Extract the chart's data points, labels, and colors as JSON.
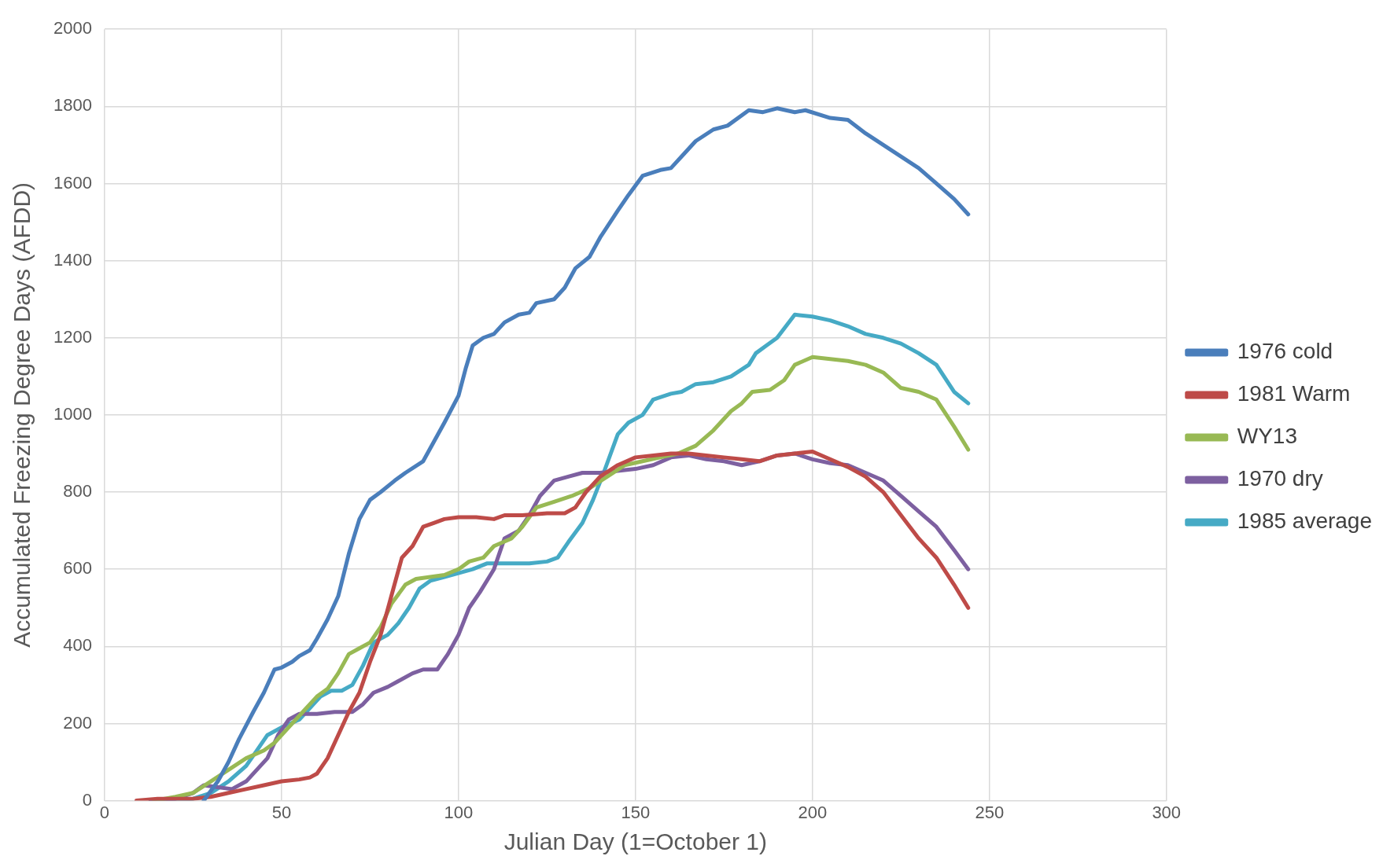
{
  "chart_data": {
    "type": "line",
    "xlabel": "Julian Day (1=October 1)",
    "ylabel": "Accumulated Freezing Degree Days (AFDD)",
    "xlim": [
      0,
      300
    ],
    "xticks": [
      0,
      50,
      100,
      150,
      200,
      250,
      300
    ],
    "ylim": [
      0,
      2000
    ],
    "yticks": [
      0,
      200,
      400,
      600,
      800,
      1000,
      1200,
      1400,
      1600,
      1800,
      2000
    ],
    "grid": true,
    "legend": "right",
    "marker": "none",
    "line_style": "solid",
    "series": [
      {
        "name": "1976 cold",
        "color": "#4a7ebb",
        "x": [
          28,
          32,
          35,
          38,
          42,
          45,
          48,
          50,
          53,
          55,
          58,
          60,
          63,
          66,
          69,
          72,
          75,
          78,
          82,
          85,
          90,
          93,
          96,
          100,
          102,
          104,
          107,
          110,
          113,
          117,
          120,
          122,
          127,
          130,
          133,
          137,
          140,
          145,
          148,
          152,
          157,
          160,
          164,
          167,
          172,
          176,
          182,
          186,
          190,
          195,
          198,
          205,
          210,
          215,
          220,
          225,
          230,
          235,
          240,
          244
        ],
        "values": [
          0,
          50,
          100,
          160,
          230,
          280,
          340,
          345,
          360,
          375,
          390,
          420,
          470,
          530,
          640,
          730,
          780,
          800,
          830,
          850,
          880,
          930,
          980,
          1050,
          1120,
          1180,
          1200,
          1210,
          1240,
          1260,
          1265,
          1290,
          1300,
          1330,
          1380,
          1410,
          1460,
          1530,
          1570,
          1620,
          1635,
          1640,
          1680,
          1710,
          1740,
          1750,
          1790,
          1785,
          1795,
          1785,
          1790,
          1770,
          1765,
          1730,
          1700,
          1670,
          1640,
          1600,
          1560,
          1520
        ]
      },
      {
        "name": "1981 Warm",
        "color": "#be4b48",
        "x": [
          9,
          15,
          25,
          30,
          35,
          40,
          45,
          50,
          55,
          58,
          60,
          63,
          66,
          69,
          72,
          75,
          78,
          81,
          84,
          87,
          90,
          93,
          96,
          100,
          105,
          110,
          113,
          118,
          125,
          130,
          133,
          136,
          140,
          145,
          150,
          155,
          160,
          165,
          170,
          175,
          180,
          185,
          190,
          195,
          200,
          205,
          210,
          215,
          220,
          225,
          230,
          235,
          240,
          244
        ],
        "values": [
          0,
          5,
          5,
          10,
          20,
          30,
          40,
          50,
          55,
          60,
          70,
          110,
          170,
          230,
          280,
          360,
          430,
          530,
          630,
          660,
          710,
          720,
          730,
          735,
          735,
          730,
          740,
          740,
          745,
          745,
          760,
          800,
          840,
          870,
          890,
          895,
          900,
          900,
          895,
          890,
          885,
          880,
          895,
          900,
          905,
          885,
          865,
          840,
          800,
          740,
          680,
          630,
          560,
          500
        ]
      },
      {
        "name": "WY13",
        "color": "#98b954",
        "x": [
          14,
          20,
          25,
          30,
          35,
          40,
          45,
          48,
          52,
          56,
          60,
          63,
          66,
          69,
          72,
          75,
          78,
          81,
          85,
          88,
          92,
          96,
          100,
          103,
          107,
          110,
          115,
          118,
          122,
          127,
          132,
          137,
          142,
          147,
          152,
          157,
          162,
          167,
          172,
          177,
          180,
          183,
          188,
          192,
          195,
          200,
          205,
          210,
          215,
          220,
          225,
          230,
          235,
          240,
          244
        ],
        "values": [
          0,
          10,
          20,
          50,
          80,
          110,
          130,
          150,
          190,
          230,
          270,
          290,
          330,
          380,
          395,
          410,
          450,
          510,
          560,
          575,
          580,
          585,
          600,
          620,
          630,
          660,
          680,
          710,
          760,
          775,
          790,
          810,
          840,
          870,
          880,
          890,
          900,
          920,
          960,
          1010,
          1030,
          1060,
          1065,
          1090,
          1130,
          1150,
          1145,
          1140,
          1130,
          1110,
          1070,
          1060,
          1040,
          970,
          910
        ]
      },
      {
        "name": "1970 dry",
        "color": "#7d60a0",
        "x": [
          13,
          20,
          25,
          28,
          32,
          36,
          40,
          43,
          46,
          49,
          52,
          55,
          60,
          65,
          70,
          73,
          76,
          80,
          83,
          87,
          90,
          94,
          97,
          100,
          103,
          106,
          110,
          113,
          117,
          120,
          123,
          127,
          131,
          135,
          140,
          145,
          150,
          155,
          160,
          165,
          170,
          175,
          180,
          185,
          190,
          195,
          200,
          205,
          210,
          215,
          220,
          225,
          230,
          235,
          240,
          244
        ],
        "values": [
          0,
          5,
          20,
          40,
          35,
          30,
          50,
          80,
          110,
          170,
          210,
          225,
          225,
          230,
          230,
          250,
          280,
          295,
          310,
          330,
          340,
          340,
          380,
          430,
          500,
          540,
          600,
          680,
          700,
          740,
          790,
          830,
          840,
          850,
          850,
          855,
          860,
          870,
          890,
          895,
          885,
          880,
          870,
          880,
          895,
          900,
          885,
          875,
          870,
          850,
          830,
          790,
          750,
          710,
          650,
          600
        ]
      },
      {
        "name": "1985 average",
        "color": "#46aac5",
        "x": [
          13,
          20,
          25,
          30,
          35,
          40,
          43,
          46,
          50,
          55,
          58,
          61,
          64,
          67,
          70,
          73,
          76,
          80,
          83,
          86,
          89,
          92,
          96,
          100,
          104,
          108,
          115,
          120,
          125,
          128,
          131,
          135,
          138,
          141,
          145,
          148,
          152,
          155,
          160,
          163,
          167,
          172,
          177,
          182,
          184,
          187,
          190,
          195,
          200,
          205,
          210,
          215,
          220,
          225,
          230,
          235,
          240,
          244
        ],
        "values": [
          0,
          0,
          5,
          20,
          50,
          90,
          130,
          170,
          190,
          210,
          240,
          270,
          285,
          285,
          300,
          350,
          410,
          430,
          460,
          500,
          550,
          570,
          580,
          590,
          600,
          615,
          615,
          615,
          620,
          630,
          670,
          720,
          780,
          850,
          950,
          980,
          1000,
          1040,
          1055,
          1060,
          1080,
          1085,
          1100,
          1130,
          1160,
          1180,
          1200,
          1260,
          1255,
          1245,
          1230,
          1210,
          1200,
          1185,
          1160,
          1130,
          1060,
          1030
        ]
      }
    ]
  }
}
